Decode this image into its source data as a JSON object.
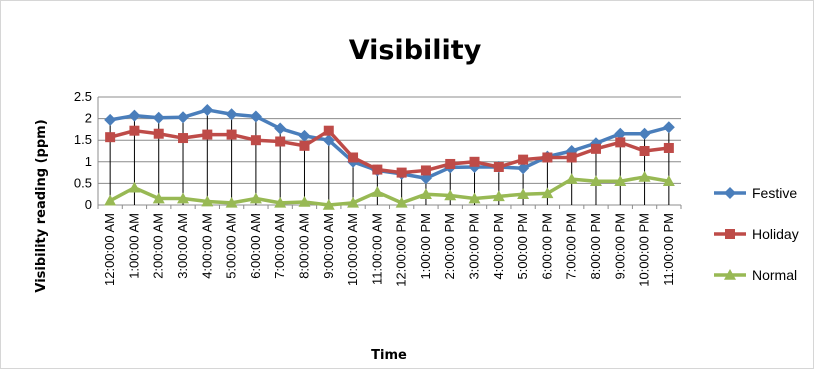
{
  "chart_data": {
    "type": "line",
    "title": "Visibility",
    "xlabel": "Time",
    "ylabel": "Visibility reading (ppm)",
    "ylim": [
      0,
      2.5
    ],
    "yticks": [
      "0",
      "0.5",
      "1",
      "1.5",
      "2",
      "2.5"
    ],
    "grid": true,
    "legend_position": "right",
    "categories": [
      "12:00:00 AM",
      "1:00:00 AM",
      "2:00:00 AM",
      "3:00:00 AM",
      "4:00:00 AM",
      "5:00:00 AM",
      "6:00:00 AM",
      "7:00:00 AM",
      "8:00:00 AM",
      "9:00:00 AM",
      "10:00:00 AM",
      "11:00:00 AM",
      "12:00:00 PM",
      "1:00:00 PM",
      "2:00:00 PM",
      "3:00:00 PM",
      "4:00:00 PM",
      "5:00:00 PM",
      "6:00:00 PM",
      "7:00:00 PM",
      "8:00:00 PM",
      "9:00:00 PM",
      "10:00:00 PM",
      "11:00:00 PM"
    ],
    "series": [
      {
        "name": "Festive",
        "color": "#4a7ebb",
        "marker": "diamond",
        "values": [
          1.97,
          2.07,
          2.02,
          2.03,
          2.2,
          2.1,
          2.05,
          1.77,
          1.6,
          1.5,
          1.0,
          0.8,
          0.72,
          0.62,
          0.87,
          0.88,
          0.88,
          0.85,
          1.12,
          1.25,
          1.43,
          1.65,
          1.65,
          1.8
        ]
      },
      {
        "name": "Holiday",
        "color": "#be4b48",
        "marker": "square",
        "values": [
          1.57,
          1.72,
          1.65,
          1.55,
          1.63,
          1.63,
          1.5,
          1.47,
          1.37,
          1.72,
          1.1,
          0.82,
          0.75,
          0.8,
          0.95,
          1.0,
          0.88,
          1.05,
          1.1,
          1.1,
          1.3,
          1.45,
          1.25,
          1.32
        ]
      },
      {
        "name": "Normal",
        "color": "#98b954",
        "marker": "triangle",
        "values": [
          0.1,
          0.4,
          0.15,
          0.15,
          0.08,
          0.05,
          0.15,
          0.05,
          0.07,
          0.0,
          0.05,
          0.3,
          0.05,
          0.25,
          0.22,
          0.15,
          0.2,
          0.25,
          0.27,
          0.6,
          0.55,
          0.55,
          0.65,
          0.55
        ]
      }
    ]
  }
}
